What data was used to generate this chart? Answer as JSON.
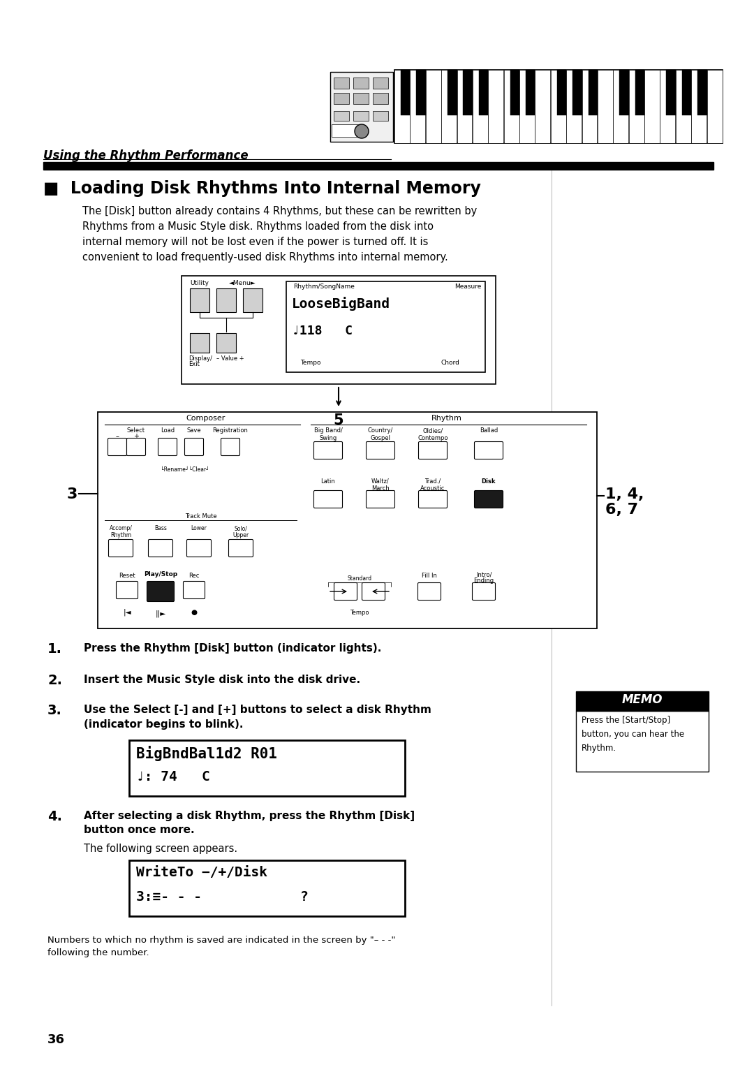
{
  "bg_color": "#ffffff",
  "section_header": "Using the Rhythm Performance",
  "title": "Loading Disk Rhythms Into Internal Memory",
  "body_text_lines": [
    "The [Disk] button already contains 4 Rhythms, but these can be rewritten by",
    "Rhythms from a Music Style disk. Rhythms loaded from the disk into",
    "internal memory will not be lost even if the power is turned off. It is",
    "convenient to load frequently-used disk Rhythms into internal memory."
  ],
  "screen1_line1": "LooseBigBand",
  "screen1_line2": "♩118   C",
  "screen2_line1": "BigBndBal1d2 R01",
  "screen2_line2": "♩: 74   C",
  "screen3_line1": "WriteTo −/+/Disk",
  "screen3_line2": "3:≡- - -            ?",
  "step1": "Press the Rhythm [Disk] button (indicator lights).",
  "step2": "Insert the Music Style disk into the disk drive.",
  "step3_a": "Use the Select [-] and [+] buttons to select a disk Rhythm",
  "step3_b": "(indicator begins to blink).",
  "step4_a": "After selecting a disk Rhythm, press the Rhythm [Disk]",
  "step4_b": "button once more.",
  "step4_sub": "The following screen appears.",
  "memo_title": "MEMO",
  "memo_text_lines": [
    "Press the [Start/Stop]",
    "button, you can hear the",
    "Rhythm."
  ],
  "footer_note1": "Numbers to which no rhythm is saved are indicated in the screen by \"– - -\"",
  "footer_note2": "following the number.",
  "page_number": "36"
}
